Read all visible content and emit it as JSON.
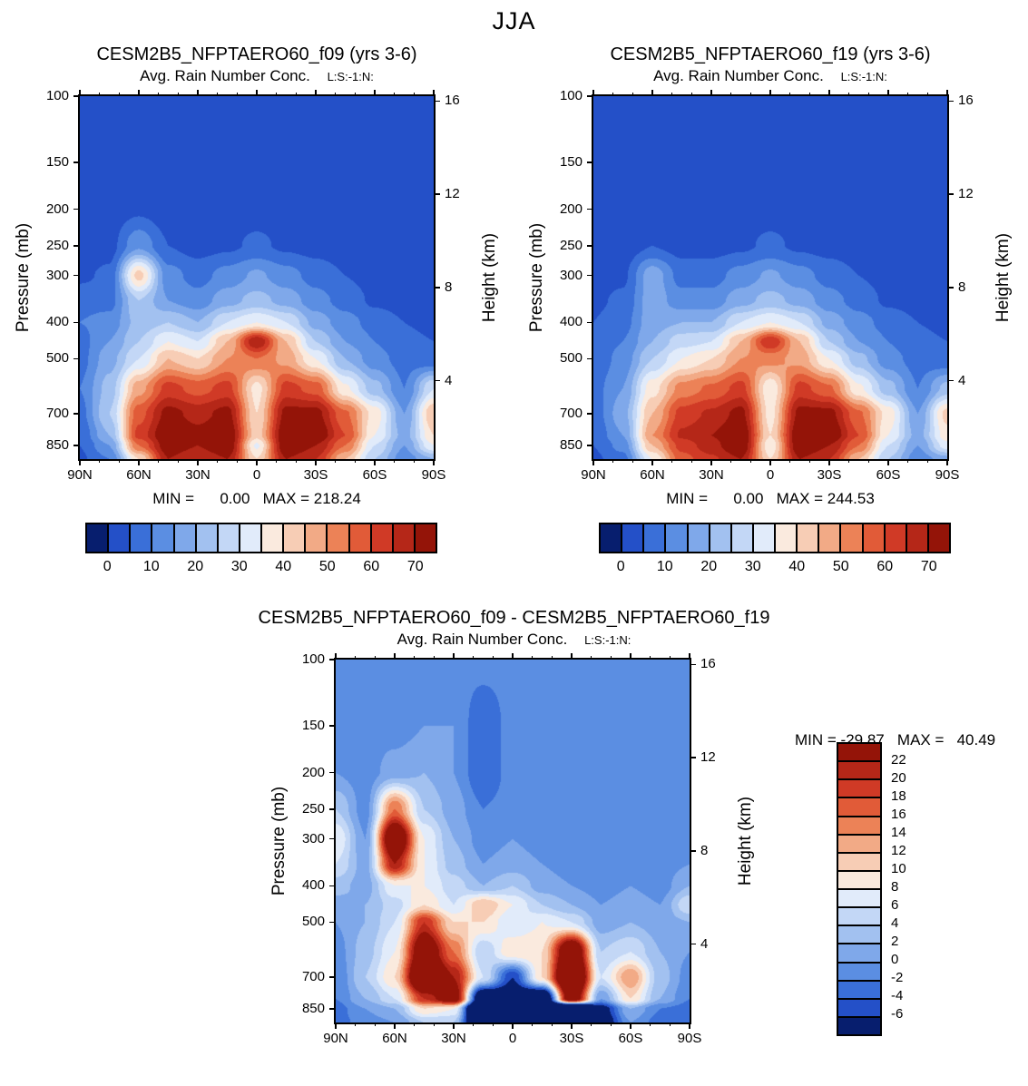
{
  "title": "JJA",
  "palette": [
    "#071e6e",
    "#2450c8",
    "#3a6fd8",
    "#5b8ee2",
    "#7fa8ea",
    "#a2c1f0",
    "#c3d7f6",
    "#e1ebfa",
    "#faeade",
    "#f7cdb5",
    "#f2aa86",
    "#ec8257",
    "#e15b38",
    "#d03a26",
    "#b52718",
    "#941408"
  ],
  "frame_color": "#000000",
  "chart_data": [
    {
      "type": "heatmap",
      "title": "CESM2B5_NFPTAERO60_f09 (yrs 3-6)",
      "subtitle": "Avg. Rain Number Conc.",
      "note": "L:S:-1:N:",
      "stats": "MIN =      0.00   MAX = 218.24",
      "min": 0.0,
      "max": 218.24,
      "ylabel_left": "Pressure (mb)",
      "ylabel_right": "Height (km)",
      "xlabel_ticks": [
        "90N",
        "60N",
        "30N",
        "0",
        "30S",
        "60S",
        "90S"
      ],
      "yticks_pressure": [
        100,
        150,
        200,
        250,
        300,
        400,
        500,
        700,
        850
      ],
      "yticks_height_km": [
        16,
        12,
        8,
        4
      ],
      "xlim": [
        90,
        -90
      ],
      "ylim_mb": [
        100,
        925
      ],
      "levels": [
        0,
        5,
        10,
        15,
        20,
        25,
        30,
        35,
        40,
        45,
        50,
        55,
        60,
        65,
        70
      ],
      "colorbar_labels": [
        "0",
        "10",
        "20",
        "30",
        "40",
        "50",
        "60",
        "70"
      ],
      "lat_deg": [
        90,
        75,
        60,
        45,
        30,
        15,
        0,
        -15,
        -30,
        -45,
        -60,
        -75,
        -90
      ],
      "pressure_mb": [
        100,
        150,
        200,
        250,
        300,
        350,
        400,
        450,
        500,
        600,
        700,
        800,
        850,
        925
      ],
      "values": [
        [
          2,
          2,
          2,
          2,
          2,
          2,
          2,
          2,
          2,
          2,
          2,
          2,
          2
        ],
        [
          2,
          2,
          2,
          2,
          2,
          2,
          2,
          2,
          2,
          2,
          2,
          2,
          2
        ],
        [
          2,
          2,
          4,
          2,
          2,
          3,
          3,
          3,
          2,
          2,
          2,
          2,
          2
        ],
        [
          2,
          3,
          14,
          5,
          3,
          4,
          6,
          4,
          3,
          2,
          2,
          2,
          2
        ],
        [
          4,
          6,
          42,
          12,
          8,
          12,
          16,
          12,
          8,
          5,
          3,
          2,
          2
        ],
        [
          8,
          8,
          25,
          15,
          12,
          18,
          22,
          18,
          12,
          8,
          4,
          3,
          3
        ],
        [
          10,
          12,
          22,
          25,
          20,
          30,
          35,
          30,
          18,
          12,
          8,
          5,
          4
        ],
        [
          8,
          15,
          25,
          35,
          30,
          45,
          70,
          45,
          25,
          15,
          10,
          6,
          5
        ],
        [
          8,
          18,
          30,
          45,
          40,
          50,
          55,
          48,
          35,
          20,
          12,
          8,
          6
        ],
        [
          10,
          22,
          48,
          62,
          58,
          62,
          38,
          62,
          58,
          36,
          22,
          10,
          30
        ],
        [
          8,
          25,
          58,
          72,
          68,
          72,
          40,
          72,
          72,
          56,
          38,
          15,
          45
        ],
        [
          6,
          20,
          62,
          76,
          72,
          76,
          42,
          76,
          76,
          60,
          35,
          18,
          40
        ],
        [
          5,
          15,
          55,
          74,
          70,
          76,
          34,
          76,
          70,
          55,
          30,
          15,
          35
        ],
        [
          4,
          10,
          40,
          70,
          65,
          70,
          40,
          70,
          65,
          45,
          25,
          12,
          20
        ]
      ]
    },
    {
      "type": "heatmap",
      "title": "CESM2B5_NFPTAERO60_f19 (yrs 3-6)",
      "subtitle": "Avg. Rain Number Conc.",
      "note": "L:S:-1:N:",
      "stats": "MIN =      0.00   MAX = 244.53",
      "min": 0.0,
      "max": 244.53,
      "ylabel_left": "Pressure (mb)",
      "ylabel_right": "Height (km)",
      "xlabel_ticks": [
        "90N",
        "60N",
        "30N",
        "0",
        "30S",
        "60S",
        "90S"
      ],
      "yticks_pressure": [
        100,
        150,
        200,
        250,
        300,
        400,
        500,
        700,
        850
      ],
      "yticks_height_km": [
        16,
        12,
        8,
        4
      ],
      "xlim": [
        90,
        -90
      ],
      "ylim_mb": [
        100,
        925
      ],
      "levels": [
        0,
        5,
        10,
        15,
        20,
        25,
        30,
        35,
        40,
        45,
        50,
        55,
        60,
        65,
        70
      ],
      "colorbar_labels": [
        "0",
        "10",
        "20",
        "30",
        "40",
        "50",
        "60",
        "70"
      ],
      "lat_deg": [
        90,
        75,
        60,
        45,
        30,
        15,
        0,
        -15,
        -30,
        -45,
        -60,
        -75,
        -90
      ],
      "pressure_mb": [
        100,
        150,
        200,
        250,
        300,
        350,
        400,
        450,
        500,
        600,
        700,
        800,
        850,
        925
      ],
      "values": [
        [
          2,
          2,
          2,
          2,
          2,
          2,
          2,
          2,
          2,
          2,
          2,
          2,
          2
        ],
        [
          2,
          2,
          2,
          2,
          2,
          2,
          2,
          2,
          2,
          2,
          2,
          2,
          2
        ],
        [
          2,
          2,
          3,
          2,
          2,
          3,
          3,
          3,
          2,
          2,
          2,
          2,
          2
        ],
        [
          2,
          2,
          5,
          3,
          3,
          4,
          6,
          4,
          3,
          2,
          2,
          2,
          2
        ],
        [
          3,
          4,
          18,
          8,
          8,
          12,
          16,
          12,
          8,
          5,
          3,
          2,
          2
        ],
        [
          4,
          6,
          18,
          12,
          12,
          18,
          22,
          18,
          12,
          8,
          4,
          3,
          3
        ],
        [
          5,
          8,
          18,
          20,
          20,
          30,
          35,
          30,
          18,
          12,
          8,
          5,
          4
        ],
        [
          6,
          10,
          20,
          28,
          30,
          45,
          65,
          45,
          25,
          15,
          10,
          6,
          5
        ],
        [
          6,
          12,
          25,
          35,
          40,
          50,
          52,
          48,
          35,
          22,
          12,
          8,
          6
        ],
        [
          8,
          15,
          38,
          52,
          56,
          62,
          36,
          62,
          56,
          36,
          22,
          10,
          22
        ],
        [
          7,
          18,
          45,
          62,
          66,
          72,
          38,
          72,
          72,
          56,
          38,
          15,
          42
        ],
        [
          6,
          15,
          50,
          66,
          70,
          76,
          40,
          76,
          76,
          60,
          35,
          18,
          38
        ],
        [
          5,
          12,
          45,
          62,
          68,
          76,
          36,
          76,
          70,
          55,
          30,
          15,
          33
        ],
        [
          4,
          8,
          35,
          58,
          64,
          70,
          40,
          70,
          65,
          45,
          25,
          12,
          18
        ]
      ]
    },
    {
      "type": "heatmap",
      "title": "CESM2B5_NFPTAERO60_f09 - CESM2B5_NFPTAERO60_f19",
      "subtitle": "Avg. Rain Number Conc.",
      "note": "L:S:-1:N:",
      "stats": "MIN = -29.87   MAX =   40.49",
      "min": -29.87,
      "max": 40.49,
      "ylabel_left": "Pressure (mb)",
      "ylabel_right": "Height (km)",
      "xlabel_ticks": [
        "90N",
        "60N",
        "30N",
        "0",
        "30S",
        "60S",
        "90S"
      ],
      "yticks_pressure": [
        100,
        150,
        200,
        250,
        300,
        400,
        500,
        700,
        850
      ],
      "yticks_height_km": [
        16,
        12,
        8,
        4
      ],
      "xlim": [
        90,
        -90
      ],
      "ylim_mb": [
        100,
        925
      ],
      "levels": [
        -6,
        -4,
        -2,
        0,
        2,
        4,
        6,
        8,
        10,
        12,
        14,
        16,
        18,
        20,
        22
      ],
      "colorbar_labels_vertical": [
        "22",
        "20",
        "18",
        "16",
        "14",
        "12",
        "10",
        "8",
        "6",
        "4",
        "2",
        "0",
        "-2",
        "-4",
        "-6"
      ],
      "lat_deg": [
        90,
        75,
        60,
        45,
        30,
        15,
        0,
        -15,
        -30,
        -45,
        -60,
        -75,
        -90
      ],
      "pressure_mb": [
        100,
        150,
        200,
        250,
        300,
        350,
        400,
        450,
        500,
        600,
        700,
        800,
        850,
        925
      ],
      "values": [
        [
          -1,
          -1,
          -1,
          -1,
          -1,
          -1,
          -1,
          -1,
          -1,
          -1,
          -1,
          -1,
          -1
        ],
        [
          -1,
          -1,
          -1,
          0,
          0,
          -4,
          -1,
          -2,
          -1,
          -1,
          -1,
          -1,
          -1
        ],
        [
          0,
          -1,
          1,
          2,
          0,
          -4,
          -1,
          -2,
          -2,
          -1,
          -1,
          -1,
          -1
        ],
        [
          4,
          -1,
          16,
          4,
          1,
          -2,
          -1,
          -1,
          -2,
          -1,
          -1,
          -1,
          -1
        ],
        [
          8,
          0,
          30,
          8,
          2,
          -1,
          0,
          -1,
          -2,
          -1,
          -1,
          -1,
          -1
        ],
        [
          6,
          1,
          22,
          8,
          3,
          0,
          1,
          0,
          -1,
          -1,
          -1,
          -1,
          0
        ],
        [
          3,
          1,
          8,
          8,
          5,
          2,
          4,
          1,
          0,
          -1,
          0,
          -1,
          2
        ],
        [
          1,
          2,
          5,
          10,
          6,
          12,
          8,
          4,
          2,
          0,
          1,
          0,
          6
        ],
        [
          0,
          2,
          6,
          20,
          10,
          10,
          6,
          8,
          6,
          1,
          2,
          1,
          2
        ],
        [
          -1,
          3,
          8,
          28,
          16,
          4,
          10,
          10,
          30,
          4,
          6,
          2,
          0
        ],
        [
          -2,
          4,
          10,
          34,
          22,
          6,
          -6,
          10,
          36,
          6,
          14,
          3,
          -1
        ],
        [
          -2,
          2,
          6,
          20,
          26,
          -14,
          -10,
          -16,
          28,
          0,
          10,
          2,
          -2
        ],
        [
          -3,
          0,
          2,
          10,
          8,
          -26,
          -16,
          -20,
          -30,
          -8,
          2,
          -2,
          -3
        ],
        [
          -3,
          -1,
          0,
          4,
          4,
          -22,
          -24,
          -18,
          -26,
          -10,
          0,
          -3,
          -4
        ]
      ]
    }
  ]
}
